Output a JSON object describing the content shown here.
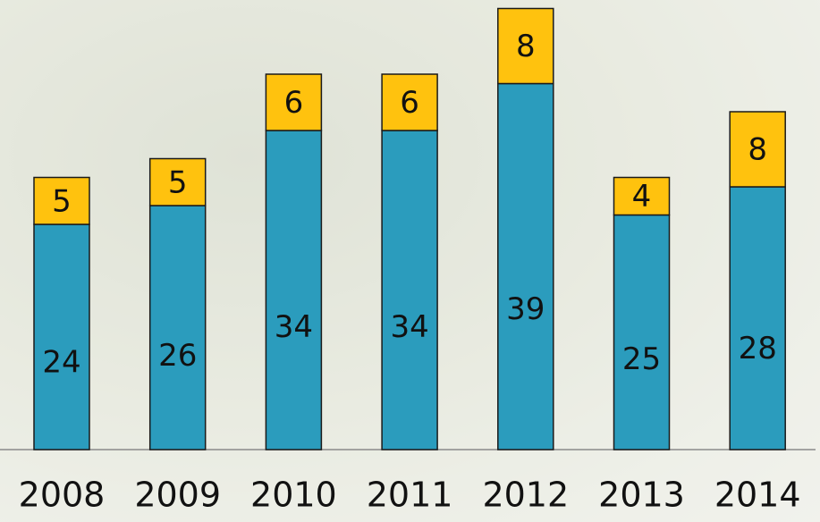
{
  "chart_data": {
    "type": "stacked_bar",
    "categories": [
      "2008",
      "2009",
      "2010",
      "2011",
      "2012",
      "2013",
      "2014"
    ],
    "series": [
      {
        "color": "#2b9cbd",
        "values": [
          24,
          26,
          34,
          34,
          39,
          25,
          28
        ]
      },
      {
        "color": "#ffc20e",
        "values": [
          5,
          5,
          6,
          6,
          8,
          4,
          8
        ]
      }
    ]
  }
}
